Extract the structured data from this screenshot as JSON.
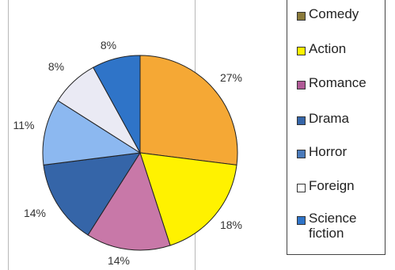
{
  "chart_data": {
    "type": "pie",
    "slices": [
      {
        "label": "Comedy",
        "value": 27,
        "color": "#F5A835",
        "display": "27%"
      },
      {
        "label": "Action",
        "value": 18,
        "color": "#FFF200",
        "display": "18%"
      },
      {
        "label": "Romance",
        "value": 14,
        "color": "#C878A8",
        "display": "14%"
      },
      {
        "label": "Drama",
        "value": 14,
        "color": "#3565A8",
        "display": "14%"
      },
      {
        "label": "Horror",
        "value": 11,
        "color": "#8CB8F0",
        "display": "11%"
      },
      {
        "label": "Foreign",
        "value": 8,
        "color": "#EAEAF4",
        "display": "8%"
      },
      {
        "label": "Science fiction",
        "value": 8,
        "color": "#2F74C8",
        "display": "8%"
      }
    ],
    "legend": [
      {
        "label": "Comedy",
        "color": "#8A7A3A"
      },
      {
        "label": "Action",
        "color": "#FFF200"
      },
      {
        "label": "Romance",
        "color": "#B05A96"
      },
      {
        "label": "Drama",
        "color": "#3565A8"
      },
      {
        "label": "Horror",
        "color": "#4A7ABA"
      },
      {
        "label": "Foreign",
        "color": "#FFFFFF"
      },
      {
        "label": "Science\nfiction",
        "color": "#2F74C8"
      }
    ],
    "legend_position": "right"
  }
}
